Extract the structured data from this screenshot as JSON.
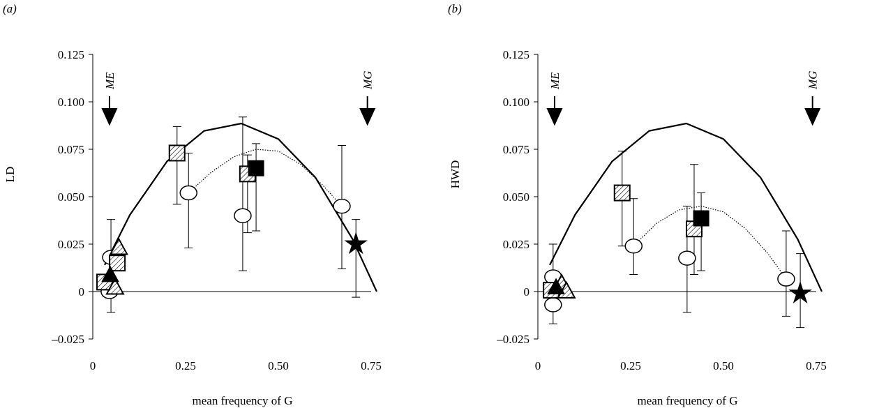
{
  "chart_data": [
    {
      "type": "scatter",
      "panel_label": "(a)",
      "ylabel": "LD",
      "xlabel": "mean frequency of G",
      "xlim": [
        0,
        0.75
      ],
      "xticks": [
        0,
        0.25,
        {
          "value": 0.5,
          "label": "0.50"
        },
        0.75
      ],
      "ylim": [
        -0.025,
        0.125
      ],
      "yticks": [
        {
          "value": -0.025,
          "label": "–0.025"
        },
        0,
        0.025,
        {
          "value": 0.05,
          "label": "0.050"
        },
        0.075,
        {
          "value": 0.1,
          "label": "0.100"
        },
        0.125
      ],
      "annotations": [
        {
          "text": "ME",
          "x": 0.045
        },
        {
          "text": "MG",
          "x": 0.74
        }
      ],
      "curves": [
        {
          "style": "solid",
          "color": "#000000",
          "x": [
            0.032,
            0.1,
            0.2,
            0.3,
            0.4,
            0.5,
            0.6,
            0.7,
            0.765
          ],
          "y": [
            0.014,
            0.0404,
            0.0686,
            0.0847,
            0.0886,
            0.0804,
            0.0601,
            0.0276,
            0
          ]
        },
        {
          "style": "dotted",
          "color": "#000000",
          "x": [
            0.258,
            0.32,
            0.38,
            0.44,
            0.5,
            0.56,
            0.62,
            0.671
          ],
          "y": [
            0.052,
            0.063,
            0.071,
            0.075,
            0.074,
            0.067,
            0.056,
            0.045
          ]
        }
      ],
      "series": [
        {
          "marker": "circle",
          "color": "#ffffff",
          "x": [
            0.045,
            0.049,
            0.258,
            0.404,
            0.671
          ],
          "values": [
            0,
            0.018,
            0.052,
            0.04,
            0.045
          ],
          "err_low": [
            null,
            -0.011,
            0.023,
            0.011,
            0.012
          ],
          "err_high": [
            null,
            0.038,
            0.073,
            0.092,
            0.077
          ]
        },
        {
          "marker": "hatched-square",
          "color": "#ffffff",
          "x": [
            0.032,
            0.066,
            0.227,
            0.417
          ],
          "values": [
            0.005,
            0.015,
            0.073,
            0.062
          ],
          "err_low": [
            null,
            null,
            0.046,
            0.031
          ],
          "err_high": [
            null,
            null,
            0.087,
            0.072
          ]
        },
        {
          "marker": "square",
          "color": "#000000",
          "x": [
            0.44
          ],
          "values": [
            0.065
          ],
          "err_low": [
            0.032
          ],
          "err_high": [
            0.078
          ]
        },
        {
          "marker": "hatched-triangle",
          "color": "#ffffff",
          "x": [
            0.07,
            0.06
          ],
          "values": [
            0.023,
            0.002
          ],
          "err_low": [
            null,
            null
          ],
          "err_high": [
            null,
            null
          ]
        },
        {
          "marker": "triangle",
          "color": "#000000",
          "x": [
            0.047
          ],
          "values": [
            0.0085
          ],
          "err_low": [
            null
          ],
          "err_high": [
            null
          ]
        },
        {
          "marker": "star",
          "color": "#000000",
          "x": [
            0.709
          ],
          "values": [
            0.025
          ],
          "err_low": [
            -0.003
          ],
          "err_high": [
            0.038
          ]
        }
      ]
    },
    {
      "type": "scatter",
      "panel_label": "(b)",
      "ylabel": "HWD",
      "xlabel": "mean frequency of G",
      "xlim": [
        0,
        0.75
      ],
      "xticks": [
        0,
        0.25,
        {
          "value": 0.5,
          "label": "0.50"
        },
        0.75
      ],
      "ylim": [
        -0.025,
        0.125
      ],
      "yticks": [
        {
          "value": -0.025,
          "label": "–0.025"
        },
        0,
        0.025,
        {
          "value": 0.05,
          "label": "0.050"
        },
        0.075,
        {
          "value": 0.1,
          "label": "0.100"
        },
        0.125
      ],
      "annotations": [
        {
          "text": "ME",
          "x": 0.045
        },
        {
          "text": "MG",
          "x": 0.74
        }
      ],
      "curves": [
        {
          "style": "solid",
          "color": "#000000",
          "x": [
            0.032,
            0.1,
            0.2,
            0.3,
            0.4,
            0.5,
            0.6,
            0.7,
            0.765
          ],
          "y": [
            0.014,
            0.0404,
            0.0686,
            0.0847,
            0.0886,
            0.0804,
            0.0601,
            0.0276,
            0
          ]
        },
        {
          "style": "dotted",
          "color": "#000000",
          "x": [
            0.258,
            0.32,
            0.38,
            0.44,
            0.5,
            0.56,
            0.62,
            0.669
          ],
          "y": [
            0.024,
            0.036,
            0.043,
            0.045,
            0.042,
            0.033,
            0.02,
            0.0066
          ]
        }
      ],
      "series": [
        {
          "marker": "circle",
          "color": "#ffffff",
          "x": [
            0.041,
            0.041,
            0.258,
            0.402,
            0.669
          ],
          "values": [
            0.0077,
            -0.007,
            0.024,
            0.0176,
            0.0066
          ],
          "err_low": [
            null,
            -0.017,
            0.009,
            -0.011,
            -0.013
          ],
          "err_high": [
            null,
            0.025,
            0.049,
            0.045,
            0.032
          ]
        },
        {
          "marker": "hatched-square",
          "color": "#ffffff",
          "x": [
            0.036,
            0.227,
            0.421
          ],
          "values": [
            0.0007,
            0.052,
            0.033
          ],
          "err_low": [
            null,
            0.024,
            0.009
          ],
          "err_high": [
            null,
            0.074,
            0.067
          ]
        },
        {
          "marker": "square",
          "color": "#000000",
          "x": [
            0.44
          ],
          "values": [
            0.0386
          ],
          "err_low": [
            0.011
          ],
          "err_high": [
            0.052
          ]
        },
        {
          "marker": "hatched-triangle",
          "color": "#ffffff",
          "x": [
            0.064,
            0.077
          ],
          "values": [
            0.004,
            0
          ],
          "err_low": [
            null,
            null
          ],
          "err_high": [
            null,
            null
          ]
        },
        {
          "marker": "triangle",
          "color": "#000000",
          "x": [
            0.049
          ],
          "values": [
            0.002
          ],
          "err_low": [
            null
          ],
          "err_high": [
            null
          ]
        },
        {
          "marker": "star",
          "color": "#000000",
          "x": [
            0.707
          ],
          "values": [
            -0.001
          ],
          "err_low": [
            -0.019
          ],
          "err_high": [
            0.02
          ]
        }
      ]
    }
  ]
}
